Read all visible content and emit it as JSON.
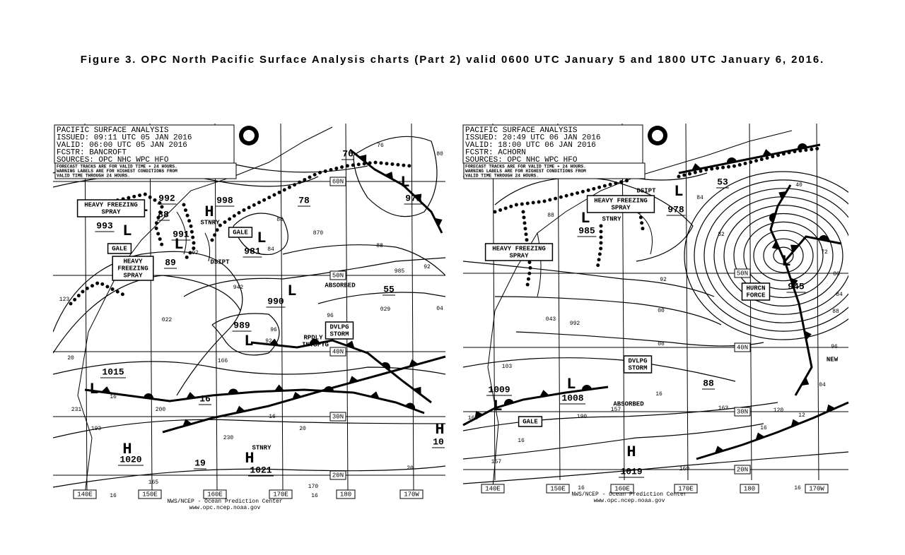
{
  "caption": "Figure 3.  OPC North Pacific Surface Analysis charts (Part 2) valid 0600 UTC January 5 and 1800 UTC January 6, 2016.",
  "maps": [
    {
      "header": [
        "PACIFIC SURFACE ANALYSIS",
        "ISSUED:  09:11 UTC 05 JAN 2016",
        "VALID:   06:00 UTC 05 JAN 2016",
        "FCSTR:   BANCROFT",
        "SOURCES:  OPC NHC WPC HFO"
      ],
      "note": [
        "FORECAST TRACKS ARE FOR VALID TIME + 24 HOURS.",
        "WARNING LABELS ARE FOR HIGHEST CONDITIONS FROM",
        "VALID TIME THROUGH 24 HOURS."
      ],
      "longitudes": [
        "140E",
        "150E",
        "160E",
        "170E",
        "180",
        "170W"
      ],
      "latitudes": [
        "60N",
        "50N",
        "40N",
        "30N",
        "20N"
      ],
      "labels": [
        "L",
        "L",
        "L",
        "L",
        "L",
        "L",
        "L",
        "L",
        "H",
        "H",
        "H",
        "H",
        "992",
        "88",
        "998",
        "78",
        "76",
        "972",
        "993",
        "991",
        "981",
        "89",
        "990",
        "55",
        "989",
        "1015",
        "16",
        "1020",
        "19",
        "1021",
        "10",
        "STNRY",
        "DSIPT",
        "ABSORBED",
        "RPDLY",
        "INTSFYG",
        "STNRY",
        "76",
        "80",
        "92",
        "84",
        "88",
        "96",
        "92",
        "16",
        "88",
        "92",
        "985",
        "96",
        "029",
        "04",
        "942",
        "022",
        "123",
        "20",
        "231",
        "200",
        "193",
        "230",
        "16",
        "20",
        "20",
        "16",
        "16",
        "170",
        "165",
        "166",
        "870"
      ],
      "boxes": [
        {
          "lines": [
            "HEAVY FREEZING",
            "SPRAY"
          ]
        },
        {
          "lines": [
            "GALE"
          ]
        },
        {
          "lines": [
            "HEAVY",
            "FREEZING",
            "SPRAY"
          ]
        },
        {
          "lines": [
            "GALE"
          ]
        },
        {
          "lines": [
            "DVLPG",
            "STORM"
          ]
        }
      ],
      "footer": [
        "NWS/NCEP - Ocean Prediction Center",
        "www.opc.ncep.noaa.gov"
      ]
    },
    {
      "header": [
        "PACIFIC SURFACE ANALYSIS",
        "ISSUED:  20:49 UTC 06 JAN 2016",
        "VALID:   18:00 UTC 06 JAN 2016",
        "FCSTR:   ACHORN",
        "SOURCES:  OPC NHC WPC HFO"
      ],
      "note": [
        "FORECAST TRACKS ARE FOR VALID TIME + 24 HOURS.",
        "WARNING LABELS ARE FOR HIGHEST CONDITIONS FROM",
        "VALID TIME THROUGH 24 HOURS."
      ],
      "longitudes": [
        "140E",
        "150E",
        "160E",
        "170E",
        "180",
        "170W"
      ],
      "latitudes": [
        "50N",
        "40N",
        "30N",
        "20N"
      ],
      "labels": [
        "L",
        "L",
        "L",
        "L",
        "L",
        "H",
        "978",
        "53",
        "985",
        "945",
        "1009",
        "1008",
        "88",
        "1019",
        "STNRY",
        "DSIPT",
        "ABSORBED",
        "NEW",
        "84",
        "40",
        "88",
        "82",
        "72",
        "80",
        "84",
        "88",
        "92",
        "00",
        "08",
        "992",
        "103",
        "16",
        "04",
        "157",
        "190",
        "163",
        "120",
        "12",
        "16",
        "16",
        "157",
        "165",
        "16",
        "16",
        "96",
        "043",
        "160"
      ],
      "boxes": [
        {
          "lines": [
            "HEAVY FREEZING",
            "SPRAY"
          ]
        },
        {
          "lines": [
            "HEAVY FREEZING",
            "SPRAY"
          ]
        },
        {
          "lines": [
            "DVLPG",
            "STORM"
          ]
        },
        {
          "lines": [
            "GALE"
          ]
        },
        {
          "lines": [
            "HURCN",
            "FORCE"
          ]
        }
      ],
      "footer": [
        "NWS/NCEP - Ocean Prediction Center",
        "www.opc.ncep.noaa.gov"
      ]
    }
  ]
}
